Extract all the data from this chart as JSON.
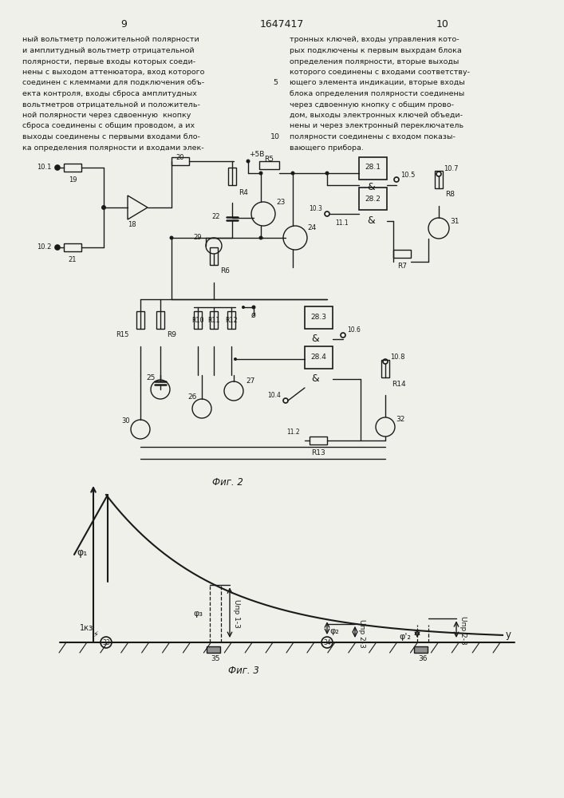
{
  "page_numbers": [
    "9",
    "10"
  ],
  "patent_number": "1647417",
  "background_color": "#f0f0eb",
  "text_color": "#1a1a1a",
  "line_color": "#1a1a1a",
  "left_text": "ный вольтметр положительной полярности\nи амплитудный вольтметр отрицательной\nполярности, первые входы которых соеди-\nнены с выходом аттенюатора, вход которого\nсоединен с клеммами для подключения объ-\nекта контроля, входы сброса амплитудных\nвольтметров отрицательной и положитель-\nной полярности через сдвоенную  кнопку\nсброса соединены с общим проводом, а их\nвыходы соединены с первыми входами бло-\nка определения полярности и входами элек-",
  "right_text": "тронных ключей, входы управления кото-\nрых подключены к первым выхрдам блока\nопределения полярности, вторые выходы\nкоторого соединены с входами соответству-\nющего элемента индикации, вторые входы\nблока определения полярности соединены\nчерез сдвоенную кнопку с общим прово-\nдом, выходы электронных ключей объеди-\nнены и через электронный переключатель\nполярности соединены с входом показы-\nвающего прибора.",
  "fig2_label": "Фиг. 2",
  "fig3_label": "Фиг. 3"
}
